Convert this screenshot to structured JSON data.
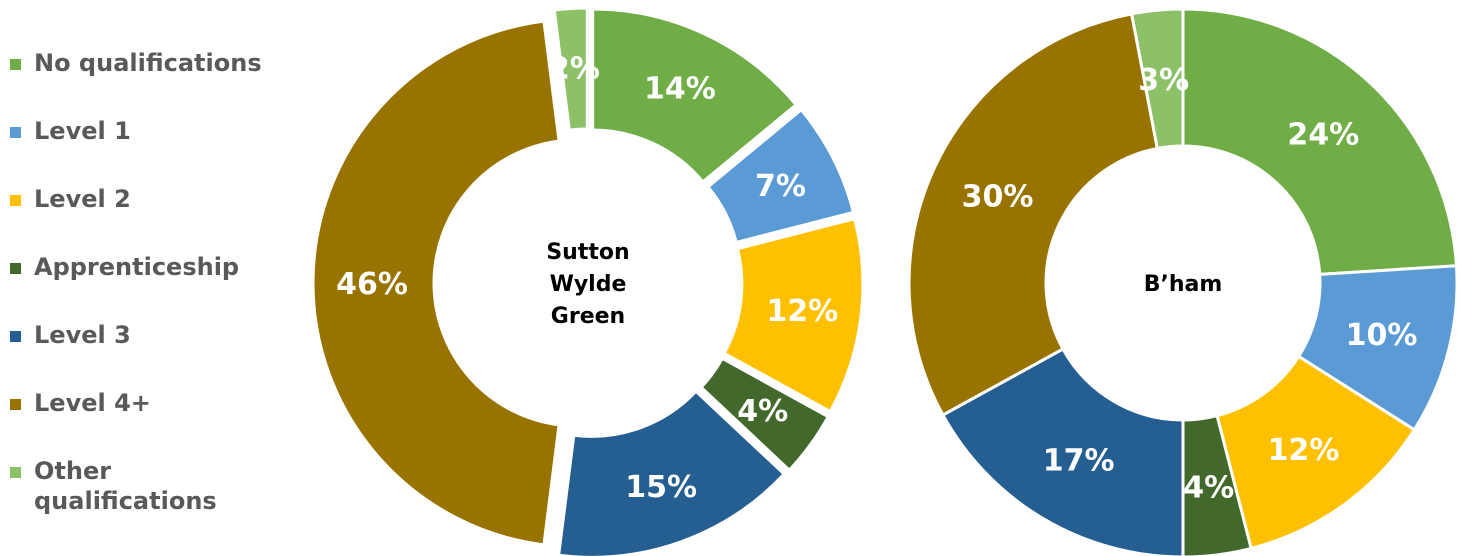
{
  "legend": [
    {
      "label": "No qualifications",
      "color": "#70AD47"
    },
    {
      "label": "Level 1",
      "color": "#5B9BD5"
    },
    {
      "label": "Level 2",
      "color": "#FFC000"
    },
    {
      "label": "Apprenticeship",
      "color": "#43682B"
    },
    {
      "label": "Level 3",
      "color": "#255E91"
    },
    {
      "label": "Level 4+",
      "color": "#997300"
    },
    {
      "label": "Other qualifications",
      "color": "#8CC168"
    }
  ],
  "chart_data": [
    {
      "type": "pie",
      "center_label": "Sutton Wylde Green",
      "categories": [
        "No qualifications",
        "Level 1",
        "Level 2",
        "Apprenticeship",
        "Level 3",
        "Level 4+",
        "Other qualifications"
      ],
      "values": [
        14,
        7,
        12,
        4,
        15,
        46,
        2
      ],
      "data_labels": [
        "14%",
        "7%",
        "12%",
        "4%",
        "15%",
        "46%",
        "2%"
      ],
      "colors": [
        "#70AD47",
        "#5B9BD5",
        "#FFC000",
        "#43682B",
        "#255E91",
        "#997300",
        "#8CC168"
      ],
      "exploded": true,
      "legend": "left"
    },
    {
      "type": "pie",
      "center_label": "B’ham",
      "categories": [
        "No qualifications",
        "Level 1",
        "Level 2",
        "Apprenticeship",
        "Level 3",
        "Level 4+",
        "Other qualifications"
      ],
      "values": [
        24,
        10,
        12,
        4,
        17,
        30,
        3
      ],
      "data_labels": [
        "24%",
        "10%",
        "12%",
        "4%",
        "17%",
        "30%",
        "3%"
      ],
      "colors": [
        "#70AD47",
        "#5B9BD5",
        "#FFC000",
        "#43682B",
        "#255E91",
        "#997300",
        "#8CC168"
      ],
      "exploded": false,
      "legend": "left"
    }
  ]
}
